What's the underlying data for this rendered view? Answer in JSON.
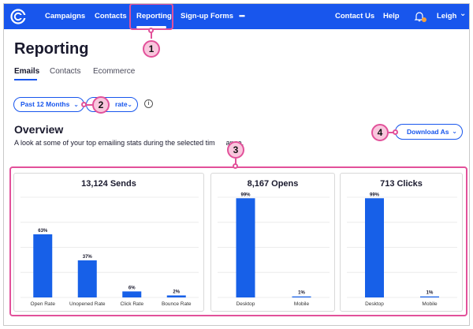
{
  "nav": {
    "items": [
      "Campaigns",
      "Contacts",
      "Reporting",
      "Sign-up Forms",
      "•••"
    ],
    "right": [
      "Contact Us",
      "Help"
    ],
    "user": "Leigh",
    "user_chevron": "⌄"
  },
  "page": {
    "title": "Reporting",
    "tabs": [
      "Emails",
      "Contacts",
      "Ecommerce"
    ],
    "active_tab": "Emails"
  },
  "filters": {
    "range_label": "Past 12 Months",
    "metric_label": "rate",
    "chevron": "⌄",
    "info_glyph": "i"
  },
  "overview": {
    "title": "Overview",
    "subtitle": "A look at some of your top emailing stats during the selected tim",
    "subtitle_tail": "ange.",
    "download_label": "Download As",
    "download_chevron": "⌄"
  },
  "callouts": [
    "1",
    "2",
    "3",
    "4"
  ],
  "colors": {
    "brand_blue": "#1856ed",
    "bar_blue": "#1760e8",
    "callout_pink": "#e2519a"
  },
  "chart_data": [
    {
      "type": "bar",
      "title": "13,124 Sends",
      "categories": [
        "Open Rate",
        "Unopened Rate",
        "Click Rate",
        "Bounce Rate"
      ],
      "values": [
        63,
        37,
        6,
        2
      ],
      "labels": [
        "63%",
        "37%",
        "6%",
        "2%"
      ],
      "ylim": [
        0,
        100
      ]
    },
    {
      "type": "bar",
      "title": "8,167 Opens",
      "categories": [
        "Desktop",
        "Mobile"
      ],
      "values": [
        99,
        1
      ],
      "labels": [
        "99%",
        "1%"
      ],
      "ylim": [
        0,
        100
      ]
    },
    {
      "type": "bar",
      "title": "713 Clicks",
      "categories": [
        "Desktop",
        "Mobile"
      ],
      "values": [
        99,
        1
      ],
      "labels": [
        "99%",
        "1%"
      ],
      "ylim": [
        0,
        100
      ]
    }
  ]
}
